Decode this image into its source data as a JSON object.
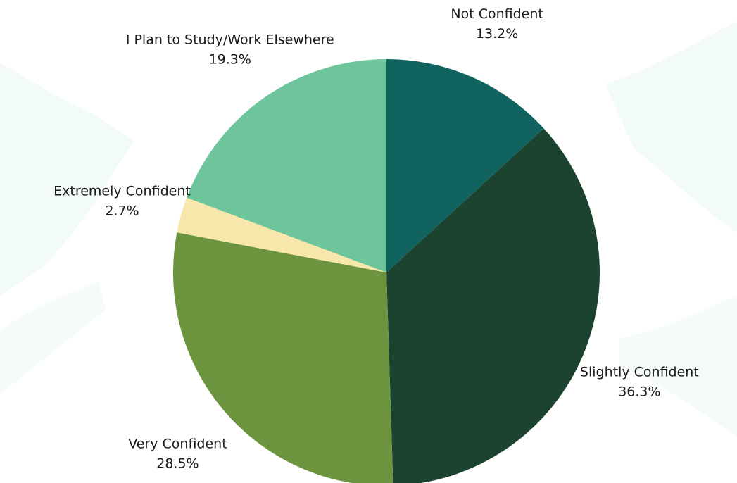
{
  "chart_data": {
    "type": "pie",
    "title": "",
    "categories": [
      "Not Confident",
      "Slightly Confident",
      "Very Confident",
      "Extremely Confident",
      "I Plan to Study/Work Elsewhere"
    ],
    "values": [
      13.2,
      36.3,
      28.5,
      2.7,
      19.3
    ],
    "value_labels": [
      "13.2%",
      "36.3%",
      "28.5%",
      "2.7%",
      "19.3%"
    ],
    "colors": [
      "#116360",
      "#1c4330",
      "#6c943e",
      "#f7e7aa",
      "#6ec59c"
    ],
    "start_angle": "12 o'clock",
    "direction": "clockwise",
    "legend": "none",
    "label_position": "outside"
  },
  "theme": {
    "background": "#ffffff",
    "background_shapes": "#f2fbf7"
  }
}
